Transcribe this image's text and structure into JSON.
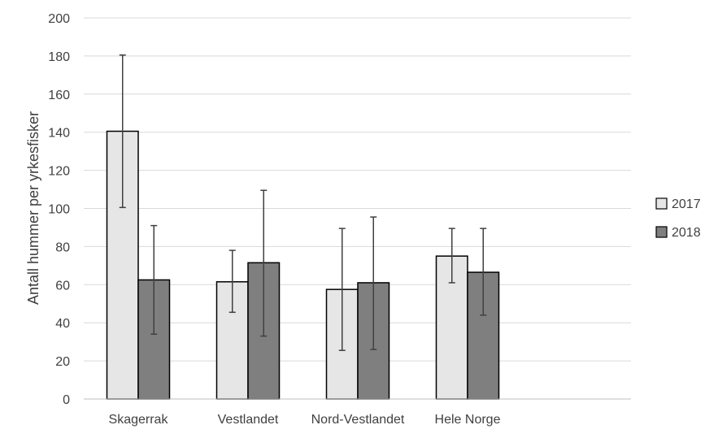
{
  "chart_data": {
    "type": "bar",
    "title": "",
    "xlabel": "",
    "ylabel": "Antall hummer per yrkesfisker",
    "ylim": [
      0,
      200
    ],
    "yticks": [
      0,
      20,
      40,
      60,
      80,
      100,
      120,
      140,
      160,
      180,
      200
    ],
    "grid": true,
    "legend_position": "right",
    "categories": [
      "Skagerrak",
      "Vestlandet",
      "Nord-Vestlandet",
      "Hele Norge"
    ],
    "series": [
      {
        "name": "2017",
        "color": "#e6e6e6",
        "values": [
          140.5,
          61.5,
          57.5,
          75
        ],
        "error_low": [
          100.5,
          45.5,
          25.5,
          61
        ],
        "error_high": [
          180.5,
          78,
          89.5,
          89.5
        ]
      },
      {
        "name": "2018",
        "color": "#7f7f7f",
        "values": [
          62.5,
          71.5,
          61,
          66.5
        ],
        "error_low": [
          34,
          33,
          26,
          44
        ],
        "error_high": [
          91,
          109.5,
          95.5,
          89.5
        ]
      }
    ]
  }
}
